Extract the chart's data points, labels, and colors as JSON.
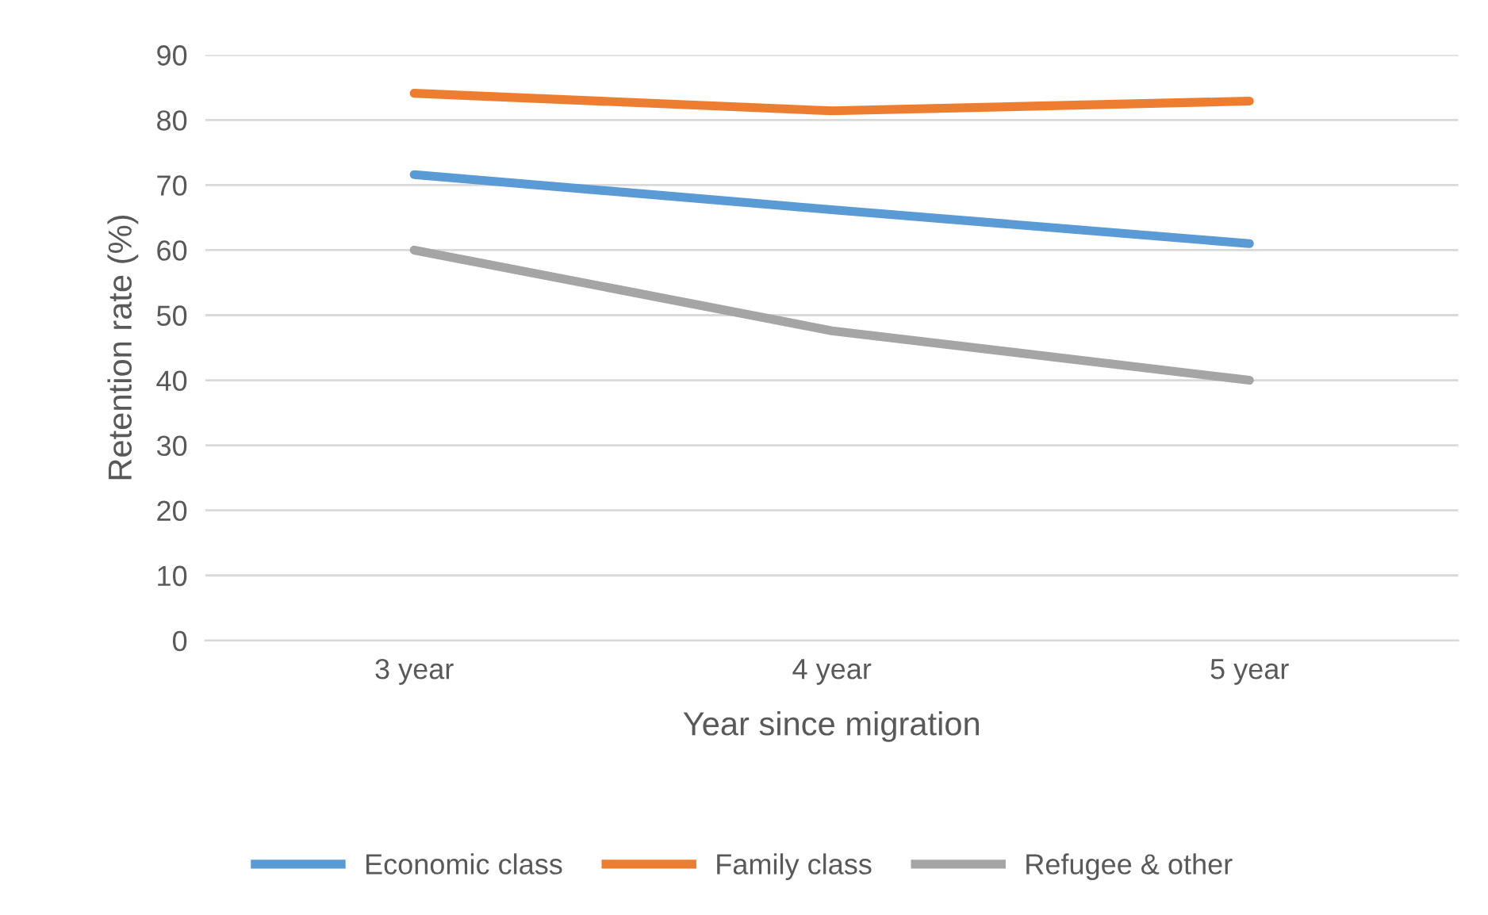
{
  "chart_data": {
    "type": "line",
    "xlabel": "Year since migration",
    "ylabel": "Retention rate (%)",
    "categories": [
      "3 year",
      "4 year",
      "5 year"
    ],
    "series": [
      {
        "name": "Economic class",
        "color": "#5b9bd5",
        "values": [
          71.6,
          66.2,
          61.0
        ]
      },
      {
        "name": "Family class",
        "color": "#ed7d31",
        "values": [
          84.1,
          81.4,
          82.9
        ]
      },
      {
        "name": "Refugee & other",
        "color": "#a5a5a5",
        "values": [
          60.0,
          47.6,
          40.0
        ]
      }
    ],
    "ylim": [
      0,
      90
    ],
    "yticks": [
      0,
      10,
      20,
      30,
      40,
      50,
      60,
      70,
      80,
      90
    ],
    "grid": "y",
    "legend": "bottom",
    "marker": "none",
    "line_style": "solid"
  }
}
